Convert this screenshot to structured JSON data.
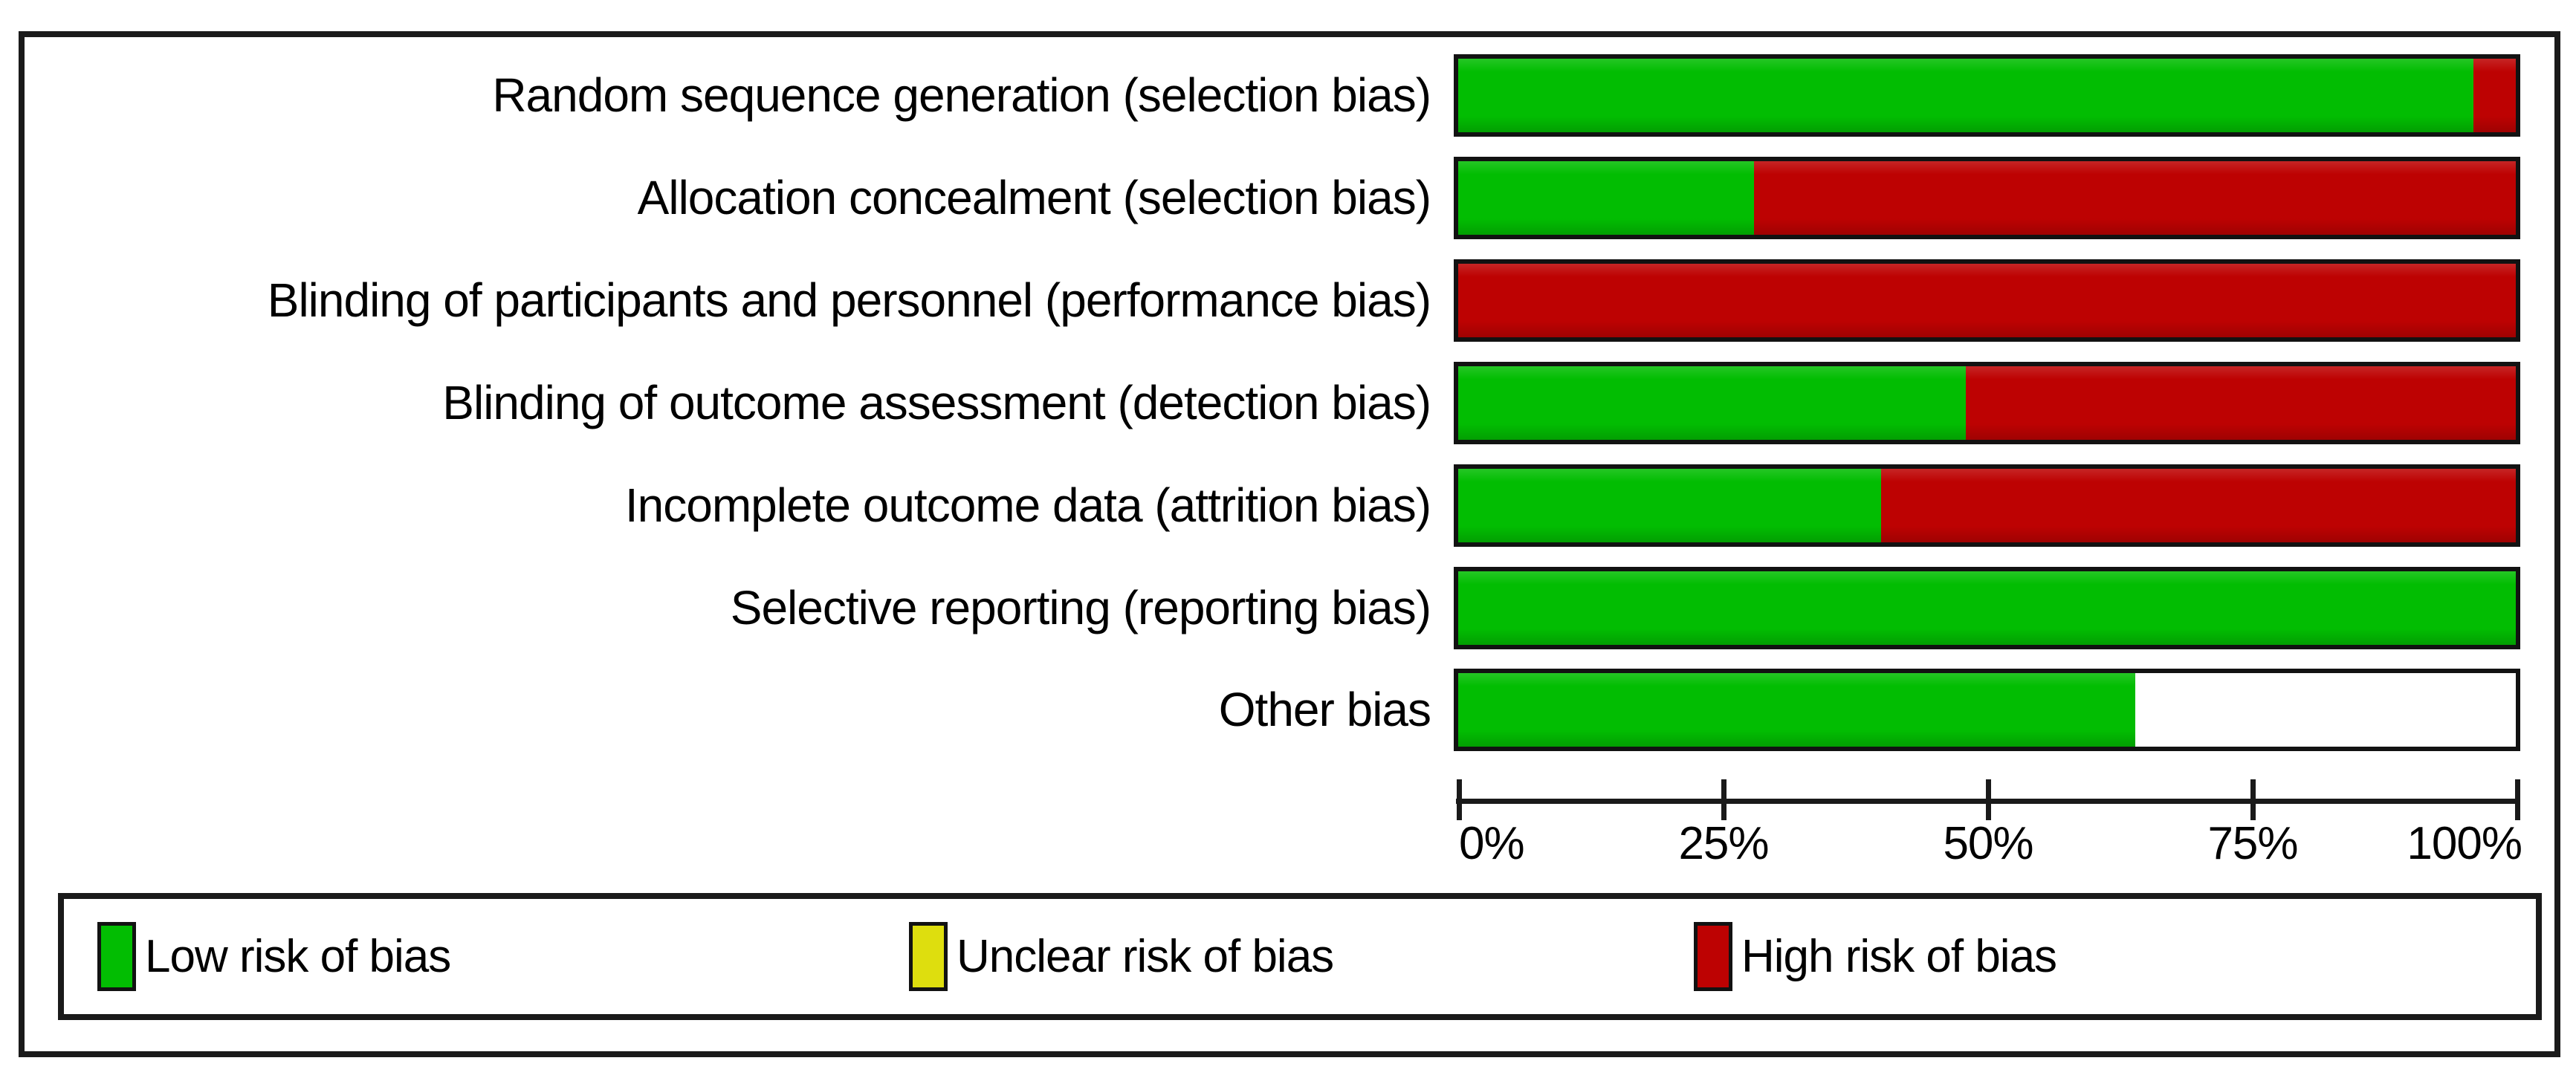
{
  "figure": {
    "background_color": "#ffffff",
    "frame_color": "#1a1a1a"
  },
  "chart_data": {
    "type": "bar",
    "orientation": "horizontal_stacked",
    "unit": "percent",
    "categories": [
      "Random sequence generation (selection bias)",
      "Allocation concealment (selection bias)",
      "Blinding of participants and personnel (performance bias)",
      "Blinding of outcome assessment (detection bias)",
      "Incomplete outcome data (attrition bias)",
      "Selective reporting (reporting bias)",
      "Other bias"
    ],
    "series": [
      {
        "name": "Low risk of bias",
        "color": "#02bd02",
        "values": [
          96,
          28,
          0,
          48,
          40,
          100,
          64
        ]
      },
      {
        "name": "Unclear risk of bias",
        "color": "#dede0e",
        "values": [
          0,
          0,
          0,
          0,
          0,
          0,
          0
        ]
      },
      {
        "name": "High risk of bias",
        "color": "#bd0202",
        "values": [
          4,
          72,
          100,
          52,
          60,
          0,
          0
        ]
      }
    ],
    "xlim": [
      0,
      100
    ],
    "x_ticks": [
      {
        "label": "0%",
        "value": 0
      },
      {
        "label": "25%",
        "value": 25
      },
      {
        "label": "50%",
        "value": 50
      },
      {
        "label": "75%",
        "value": 75
      },
      {
        "label": "100%",
        "value": 100
      }
    ],
    "grid": false,
    "legend_position": "bottom",
    "note": "Other bias row: 64% low risk, remaining 36% of bar is blank (white)."
  },
  "legend": {
    "items": [
      {
        "label": "Low risk of bias",
        "color": "#02bd02"
      },
      {
        "label": "Unclear risk of bias",
        "color": "#dede0e"
      },
      {
        "label": "High risk of bias",
        "color": "#bd0202"
      }
    ]
  }
}
